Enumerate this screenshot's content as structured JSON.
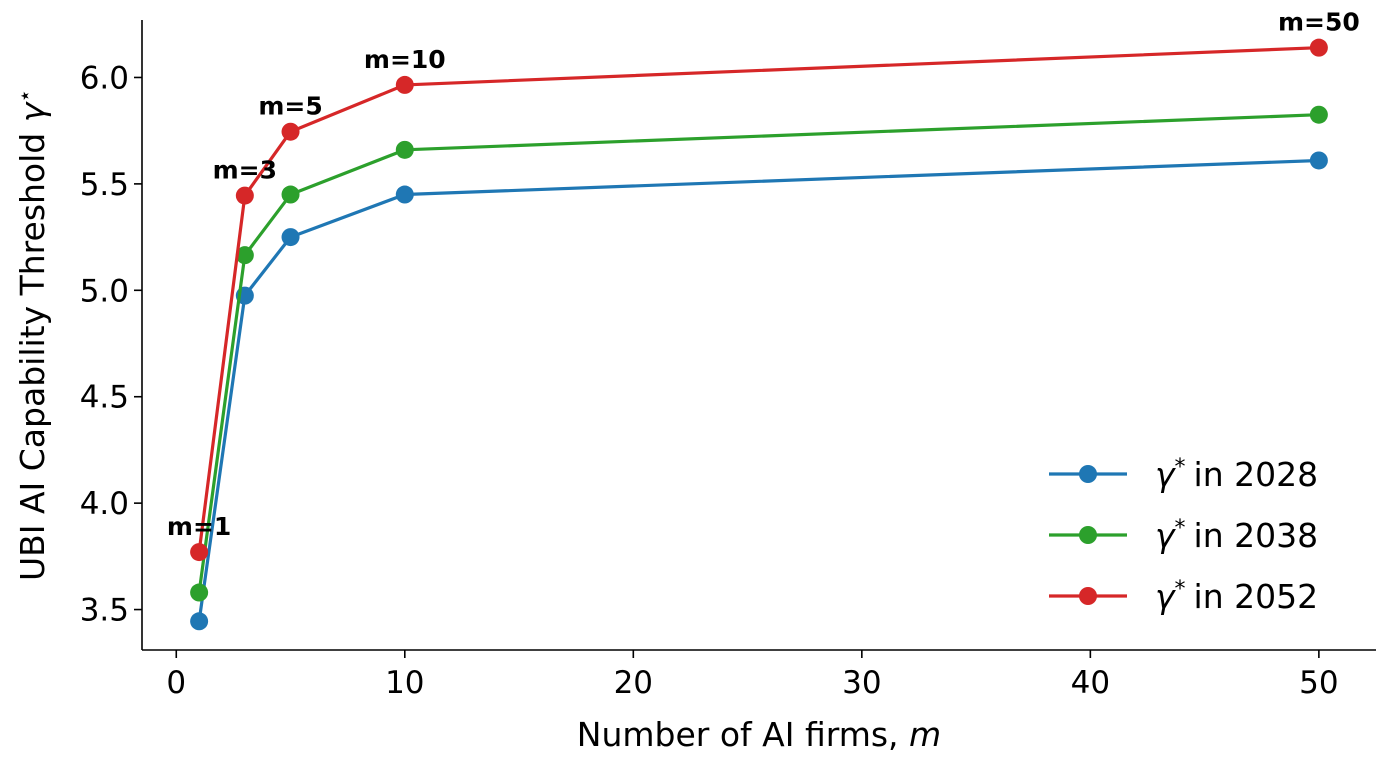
{
  "chart_data": {
    "type": "line",
    "xlabel": "Number of AI firms, ",
    "xlabel_italic": "m",
    "ylabel": "UBI AI Capability Threshold ",
    "ylabel_symbol": "γ",
    "ylabel_symbol_sup": "⋆",
    "x": [
      1,
      3,
      5,
      10,
      50
    ],
    "xlim": [
      -1.5,
      52.5
    ],
    "ylim": [
      3.31,
      6.27
    ],
    "xticks": [
      "0",
      "10",
      "20",
      "30",
      "40",
      "50"
    ],
    "yticks": [
      "3.5",
      "4.0",
      "4.5",
      "5.0",
      "5.5",
      "6.0"
    ],
    "grid": false,
    "legend_position": "lower-right",
    "series": [
      {
        "name": "in 2028",
        "symbol": "γ",
        "sup": "*",
        "color": "#1f77b4",
        "values": [
          3.445,
          4.975,
          5.25,
          5.45,
          5.61
        ]
      },
      {
        "name": "in 2038",
        "symbol": "γ",
        "sup": "*",
        "color": "#2ca02c",
        "values": [
          3.58,
          5.165,
          5.45,
          5.66,
          5.825
        ]
      },
      {
        "name": "in 2052",
        "symbol": "γ",
        "sup": "*",
        "color": "#d62728",
        "values": [
          3.77,
          5.445,
          5.745,
          5.965,
          6.14
        ]
      }
    ],
    "annotations": [
      {
        "text": "m=1",
        "x": 1,
        "y": 3.77
      },
      {
        "text": "m=3",
        "x": 3,
        "y": 5.445
      },
      {
        "text": "m=5",
        "x": 5,
        "y": 5.745
      },
      {
        "text": "m=10",
        "x": 10,
        "y": 5.965
      },
      {
        "text": "m=50",
        "x": 50,
        "y": 6.14
      }
    ]
  }
}
